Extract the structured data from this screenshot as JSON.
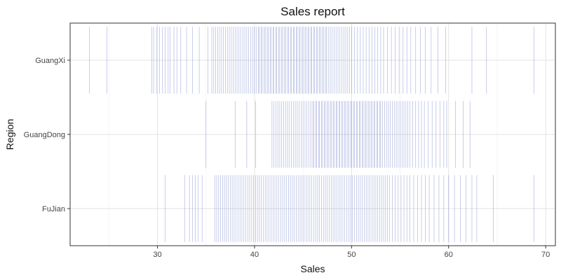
{
  "chart_data": {
    "type": "strip",
    "title": "Sales report",
    "xlabel": "Sales",
    "ylabel": "Region",
    "xlim": [
      21,
      71
    ],
    "x_ticks": [
      30,
      40,
      50,
      60,
      70
    ],
    "categories": [
      "GuangXi",
      "GuangDong",
      "FuJian"
    ],
    "grid": true,
    "mark_color": "#3b4fb5",
    "series": [
      {
        "category": "GuangXi",
        "values": [
          23.0,
          24.8,
          29.4,
          29.6,
          29.9,
          30.2,
          30.5,
          30.8,
          31.1,
          31.3,
          31.7,
          32.0,
          32.4,
          33.0,
          33.6,
          34.3,
          35.2,
          35.6,
          35.8,
          36.0,
          36.2,
          36.4,
          36.6,
          36.8,
          37.0,
          37.2,
          37.4,
          37.6,
          37.8,
          38.0,
          38.2,
          38.4,
          38.6,
          38.8,
          39.0,
          39.2,
          39.4,
          39.6,
          39.8,
          40.0,
          40.2,
          40.4,
          40.5,
          40.7,
          40.8,
          41.0,
          41.1,
          41.3,
          41.4,
          41.6,
          41.7,
          41.9,
          42.0,
          42.2,
          42.3,
          42.5,
          42.6,
          42.8,
          42.9,
          43.1,
          43.2,
          43.4,
          43.5,
          43.7,
          43.8,
          44.0,
          44.1,
          44.3,
          44.4,
          44.6,
          44.7,
          44.9,
          45.0,
          45.2,
          45.3,
          45.5,
          45.6,
          45.8,
          45.9,
          46.1,
          46.2,
          46.4,
          46.5,
          46.7,
          46.8,
          47.0,
          47.1,
          47.3,
          47.4,
          47.6,
          47.8,
          48.0,
          48.2,
          48.4,
          48.6,
          48.8,
          49.0,
          49.2,
          49.4,
          49.6,
          49.8,
          50.0,
          50.3,
          50.6,
          50.9,
          51.2,
          51.5,
          51.8,
          52.1,
          52.4,
          52.7,
          53.0,
          53.3,
          53.7,
          54.1,
          54.5,
          54.9,
          55.3,
          55.7,
          56.1,
          56.6,
          57.1,
          57.6,
          58.2,
          58.9,
          59.7,
          62.4,
          63.9,
          68.8
        ]
      },
      {
        "category": "GuangDong",
        "values": [
          35.0,
          38.0,
          39.2,
          40.1,
          41.8,
          42.0,
          42.2,
          42.4,
          42.6,
          42.8,
          43.0,
          43.2,
          43.4,
          43.6,
          43.8,
          44.0,
          44.2,
          44.4,
          44.6,
          44.8,
          45.0,
          45.2,
          45.4,
          45.6,
          45.8,
          46.0,
          46.1,
          46.3,
          46.4,
          46.6,
          46.7,
          46.9,
          47.0,
          47.2,
          47.3,
          47.5,
          47.6,
          47.8,
          47.9,
          48.1,
          48.2,
          48.4,
          48.5,
          48.7,
          48.8,
          49.0,
          49.1,
          49.3,
          49.4,
          49.6,
          49.7,
          49.9,
          50.0,
          50.2,
          50.3,
          50.5,
          50.6,
          50.8,
          50.9,
          51.1,
          51.2,
          51.4,
          51.5,
          51.7,
          51.8,
          52.0,
          52.1,
          52.3,
          52.4,
          52.6,
          52.7,
          52.9,
          53.0,
          53.2,
          53.4,
          53.6,
          53.8,
          54.0,
          54.2,
          54.4,
          54.6,
          54.8,
          55.0,
          55.2,
          55.4,
          55.6,
          55.8,
          56.0,
          56.3,
          56.6,
          56.9,
          57.2,
          57.5,
          57.9,
          58.3,
          58.7,
          59.1,
          59.5,
          59.8,
          60.7,
          61.5,
          62.2
        ]
      },
      {
        "category": "FuJian",
        "values": [
          30.8,
          32.8,
          33.3,
          33.6,
          33.9,
          34.2,
          34.6,
          35.9,
          36.1,
          36.3,
          36.5,
          36.7,
          36.9,
          37.1,
          37.3,
          37.5,
          37.7,
          37.9,
          38.1,
          38.3,
          38.5,
          38.7,
          38.9,
          39.1,
          39.3,
          39.5,
          39.7,
          39.9,
          40.1,
          40.3,
          40.5,
          40.7,
          40.9,
          41.1,
          41.3,
          41.5,
          41.7,
          41.9,
          42.1,
          42.3,
          42.5,
          42.7,
          42.9,
          43.1,
          43.3,
          43.5,
          43.7,
          43.9,
          44.1,
          44.3,
          44.5,
          44.7,
          44.9,
          45.1,
          45.3,
          45.5,
          45.7,
          45.9,
          46.1,
          46.3,
          46.5,
          46.7,
          46.9,
          47.1,
          47.3,
          47.5,
          47.7,
          47.9,
          48.1,
          48.3,
          48.5,
          48.7,
          48.9,
          49.1,
          49.3,
          49.5,
          49.7,
          49.9,
          50.1,
          50.3,
          50.5,
          50.7,
          50.9,
          51.1,
          51.3,
          51.5,
          51.7,
          51.9,
          52.1,
          52.3,
          52.5,
          52.7,
          52.9,
          53.1,
          53.3,
          53.5,
          53.7,
          53.9,
          54.2,
          54.5,
          54.8,
          55.1,
          55.4,
          55.7,
          56.0,
          56.4,
          56.8,
          57.2,
          57.6,
          58.0,
          58.5,
          59.0,
          59.5,
          60.0,
          60.6,
          61.2,
          61.8,
          62.4,
          62.9,
          64.6,
          68.8
        ]
      }
    ]
  }
}
